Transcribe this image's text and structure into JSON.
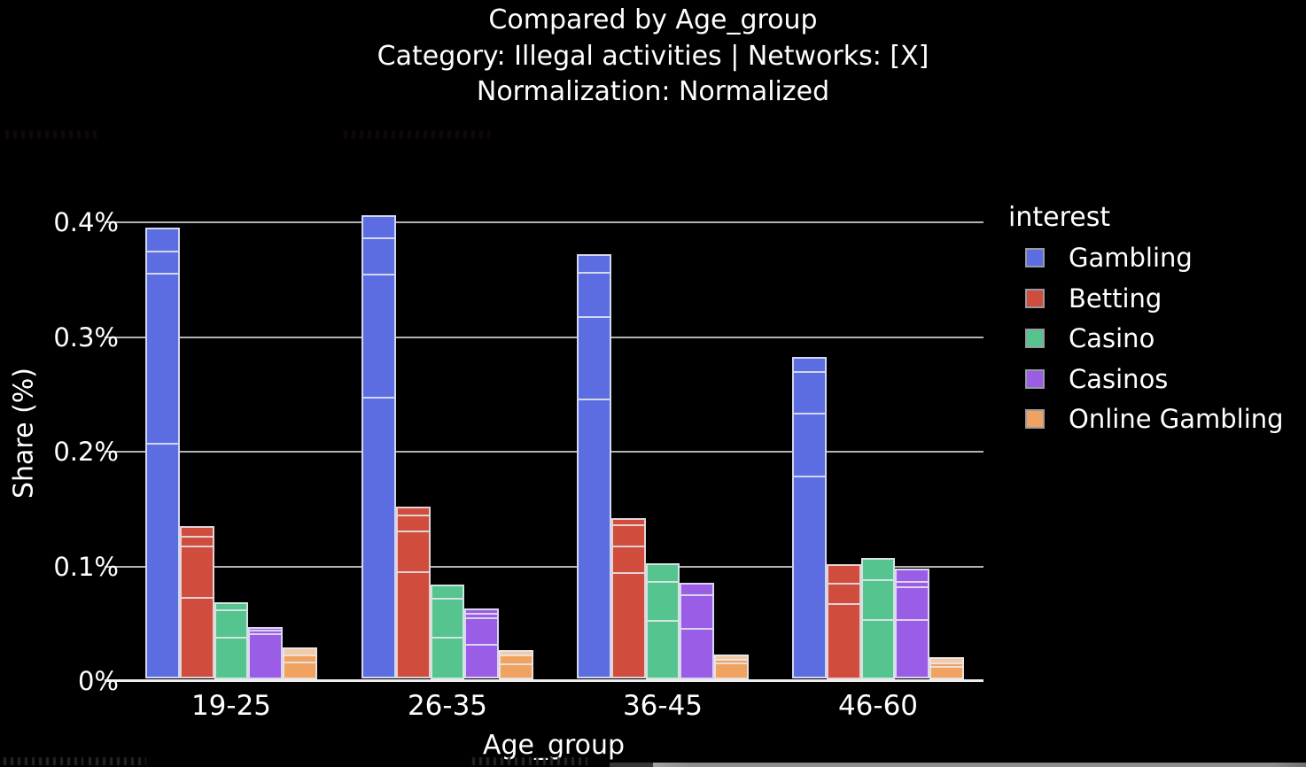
{
  "title": {
    "line1": "Compared by Age_group",
    "line2": "Category: Illegal activities | Networks: [X]",
    "line3": "Normalization: Normalized"
  },
  "axes": {
    "y_title": "Share (%)",
    "x_title": "Age_group",
    "y_ticks": [
      "0.4%",
      "0.3%",
      "0.2%",
      "0.1%",
      "0%"
    ],
    "x_ticks": [
      "19-25",
      "26-35",
      "36-45",
      "46-60"
    ]
  },
  "legend": {
    "title": "interest",
    "items": [
      {
        "label": "Gambling",
        "color": "#5c6de2"
      },
      {
        "label": "Betting",
        "color": "#d04c3c"
      },
      {
        "label": "Casino",
        "color": "#55c48e"
      },
      {
        "label": "Casinos",
        "color": "#9a5de6"
      },
      {
        "label": "Online Gambling",
        "color": "#f0a261"
      }
    ]
  },
  "chart_data": {
    "type": "bar",
    "title": "Compared by Age_group",
    "subtitle": "Category: Illegal activities | Networks: [X] | Normalization: Normalized",
    "xlabel": "Age_group",
    "ylabel": "Share (%)",
    "ylim": [
      0,
      0.42
    ],
    "ytick_values_pct": [
      0,
      0.1,
      0.2,
      0.3,
      0.4
    ],
    "grid": true,
    "legend_position": "right",
    "legend_title": "interest",
    "categories": [
      "19-25",
      "26-35",
      "36-45",
      "46-60"
    ],
    "note": "Each bar is a stack of network sub-segments; stack_dividers are cumulative % values (from bottom) where internal divider lines appear.",
    "series": [
      {
        "name": "Gambling",
        "color": "#5c6de2",
        "values": [
          0.395,
          0.406,
          0.372,
          0.283
        ],
        "stack_dividers": [
          [
            0.374,
            0.354,
            0.205
          ],
          [
            0.385,
            0.353,
            0.245
          ],
          [
            0.355,
            0.316,
            0.243
          ],
          [
            0.269,
            0.232,
            0.176
          ]
        ]
      },
      {
        "name": "Betting",
        "color": "#d04c3c",
        "values": [
          0.135,
          0.152,
          0.142,
          0.102
        ],
        "stack_dividers": [
          [
            0.125,
            0.116,
            0.07
          ],
          [
            0.144,
            0.129,
            0.093
          ],
          [
            0.135,
            0.116,
            0.092
          ],
          [
            0.084,
            0.066
          ]
        ]
      },
      {
        "name": "Casino",
        "color": "#55c48e",
        "values": [
          0.069,
          0.084,
          0.103,
          0.107
        ],
        "stack_dividers": [
          [
            0.061,
            0.036
          ],
          [
            0.071,
            0.036
          ],
          [
            0.086,
            0.051
          ],
          [
            0.087,
            0.052
          ]
        ]
      },
      {
        "name": "Casinos",
        "color": "#9a5de6",
        "values": [
          0.047,
          0.063,
          0.086,
          0.098
        ],
        "stack_dividers": [
          [
            0.043,
            0.039
          ],
          [
            0.058,
            0.053,
            0.029
          ],
          [
            0.074,
            0.044
          ],
          [
            0.086,
            0.08,
            0.051
          ]
        ]
      },
      {
        "name": "Online Gambling",
        "color": "#f0a261",
        "pale_top_color": "#f4c9a3",
        "values": [
          0.029,
          0.027,
          0.023,
          0.021
        ],
        "stack_dividers": [
          [
            0.022,
            0.015
          ],
          [
            0.022,
            0.013
          ],
          [
            0.018,
            0.014
          ],
          [
            0.015,
            0.011
          ]
        ]
      }
    ]
  }
}
